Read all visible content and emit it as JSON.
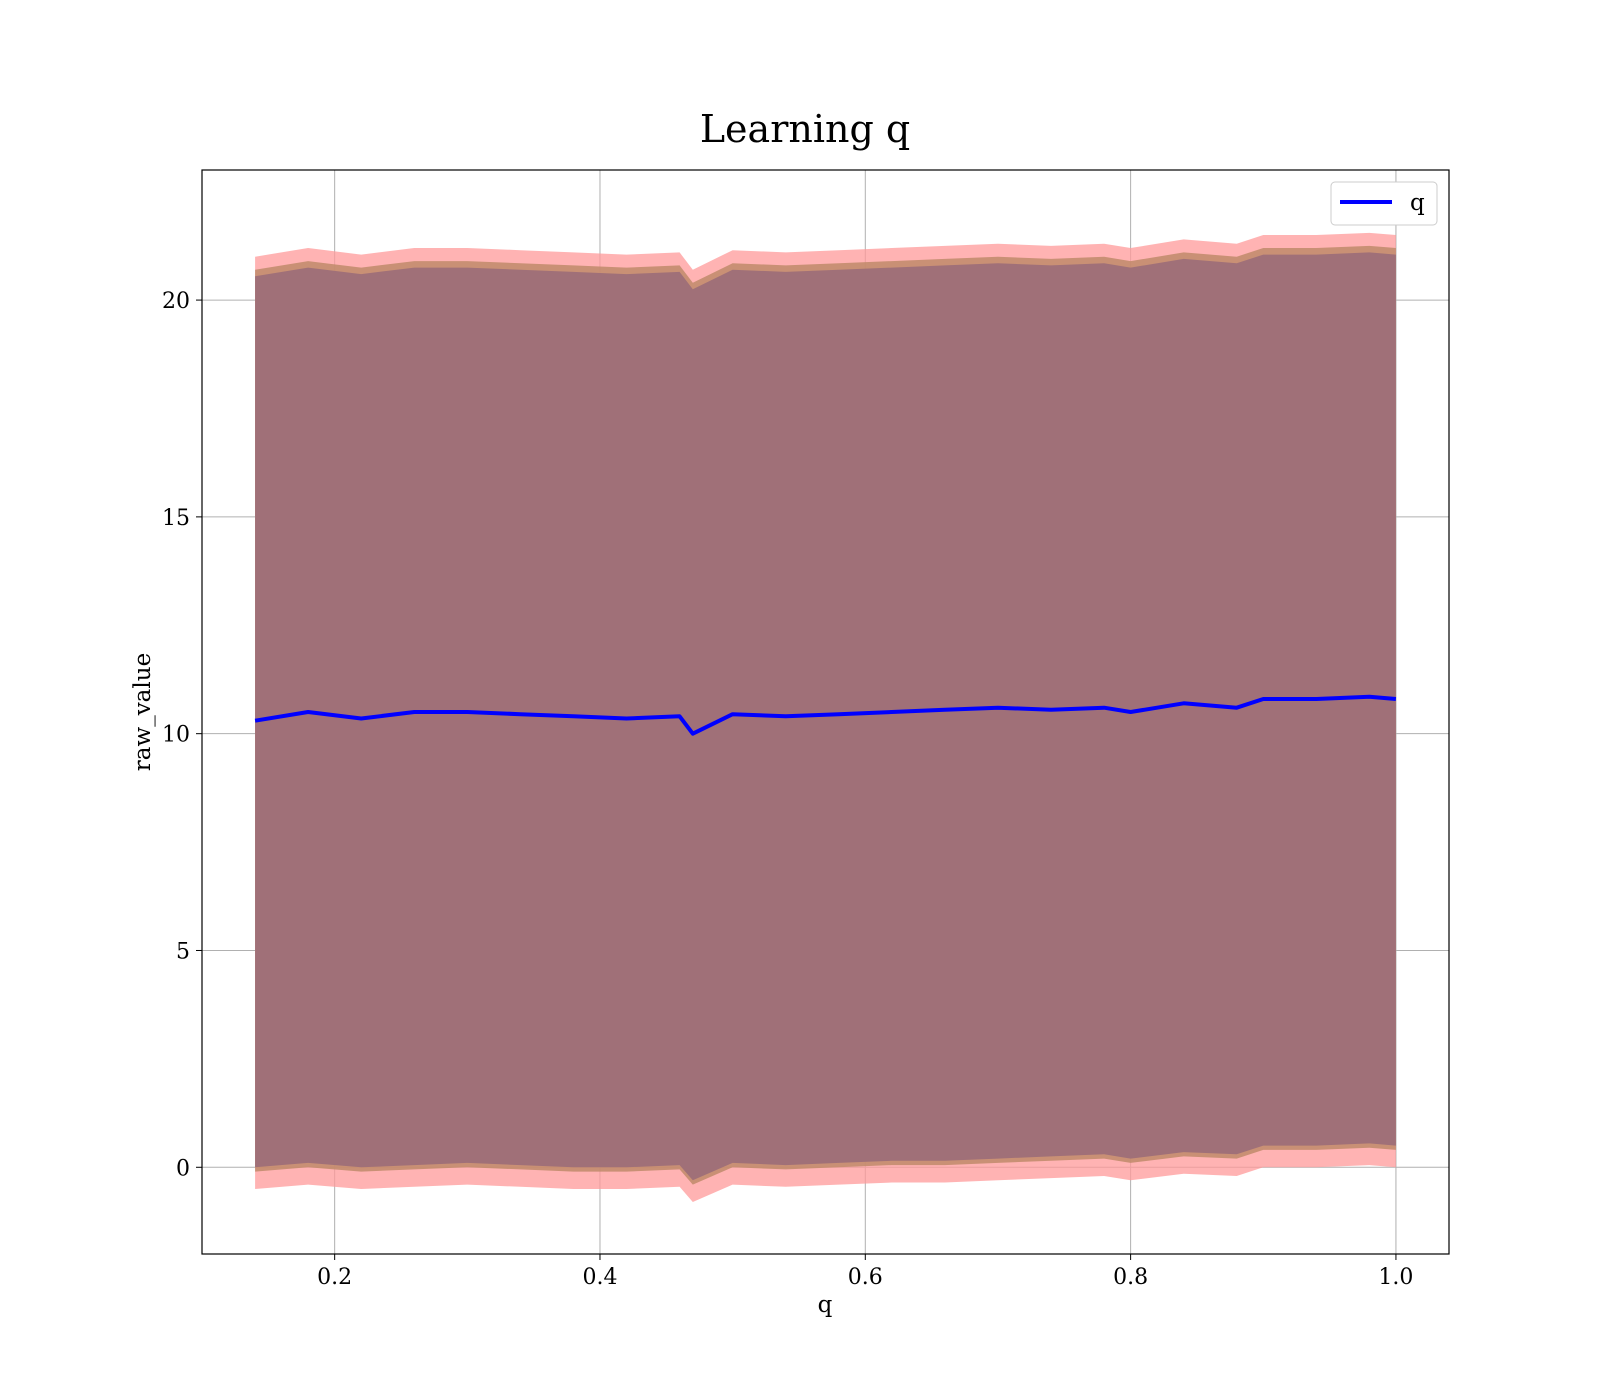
{
  "chart_data": {
    "type": "line",
    "title": "Learning q",
    "xlabel": "q",
    "ylabel": "raw_value",
    "xlim": [
      0.1,
      1.04
    ],
    "ylim": [
      -2,
      23
    ],
    "xticks": [
      0.2,
      0.4,
      0.6,
      0.8,
      1.0
    ],
    "xtick_labels": [
      "0.2",
      "0.4",
      "0.6",
      "0.8",
      "1.0"
    ],
    "yticks": [
      0,
      5,
      10,
      15,
      20
    ],
    "ytick_labels": [
      "0",
      "5",
      "10",
      "15",
      "20"
    ],
    "grid": true,
    "legend": {
      "placement": "top-right",
      "entries": [
        "q"
      ]
    },
    "colors": {
      "line": "#0000ff",
      "band_outer": "#ff9999",
      "band_mid": "#c08a6a",
      "band_inner": "#a07078"
    },
    "x": [
      0.14,
      0.18,
      0.22,
      0.26,
      0.3,
      0.34,
      0.38,
      0.42,
      0.46,
      0.47,
      0.5,
      0.54,
      0.58,
      0.62,
      0.66,
      0.7,
      0.74,
      0.78,
      0.8,
      0.84,
      0.88,
      0.9,
      0.94,
      0.98,
      1.0
    ],
    "series": [
      {
        "name": "q",
        "values": [
          10.3,
          10.5,
          10.35,
          10.5,
          10.5,
          10.45,
          10.4,
          10.35,
          10.4,
          10.0,
          10.45,
          10.4,
          10.45,
          10.5,
          10.55,
          10.6,
          10.55,
          10.6,
          10.5,
          10.7,
          10.6,
          10.8,
          10.8,
          10.85,
          10.8
        ]
      }
    ],
    "bands": [
      {
        "role": "outer",
        "lower": [
          -0.5,
          -0.4,
          -0.5,
          -0.45,
          -0.4,
          -0.45,
          -0.5,
          -0.5,
          -0.45,
          -0.8,
          -0.4,
          -0.45,
          -0.4,
          -0.35,
          -0.35,
          -0.3,
          -0.25,
          -0.2,
          -0.3,
          -0.15,
          -0.2,
          0.0,
          0.0,
          0.05,
          0.0
        ],
        "upper": [
          21.0,
          21.2,
          21.05,
          21.2,
          21.2,
          21.15,
          21.1,
          21.05,
          21.1,
          20.7,
          21.15,
          21.1,
          21.15,
          21.2,
          21.25,
          21.3,
          21.25,
          21.3,
          21.2,
          21.4,
          21.3,
          21.5,
          21.5,
          21.55,
          21.5
        ]
      },
      {
        "role": "middle",
        "lower": [
          -0.1,
          0.0,
          -0.1,
          -0.05,
          0.0,
          -0.05,
          -0.1,
          -0.1,
          -0.05,
          -0.4,
          0.0,
          -0.05,
          0.0,
          0.05,
          0.05,
          0.1,
          0.15,
          0.2,
          0.1,
          0.25,
          0.2,
          0.4,
          0.4,
          0.45,
          0.4
        ],
        "upper": [
          20.7,
          20.9,
          20.75,
          20.9,
          20.9,
          20.85,
          20.8,
          20.75,
          20.8,
          20.4,
          20.85,
          20.8,
          20.85,
          20.9,
          20.95,
          21.0,
          20.95,
          21.0,
          20.9,
          21.1,
          21.0,
          21.2,
          21.2,
          21.25,
          21.2
        ]
      },
      {
        "role": "inner",
        "lower": [
          0.0,
          0.1,
          0.0,
          0.05,
          0.1,
          0.05,
          0.0,
          0.0,
          0.05,
          -0.3,
          0.1,
          0.05,
          0.1,
          0.15,
          0.15,
          0.2,
          0.25,
          0.3,
          0.2,
          0.35,
          0.3,
          0.5,
          0.5,
          0.55,
          0.5
        ],
        "upper": [
          20.55,
          20.75,
          20.6,
          20.75,
          20.75,
          20.7,
          20.65,
          20.6,
          20.65,
          20.25,
          20.7,
          20.65,
          20.7,
          20.75,
          20.8,
          20.85,
          20.8,
          20.85,
          20.75,
          20.95,
          20.85,
          21.05,
          21.05,
          21.1,
          21.05
        ]
      }
    ]
  }
}
